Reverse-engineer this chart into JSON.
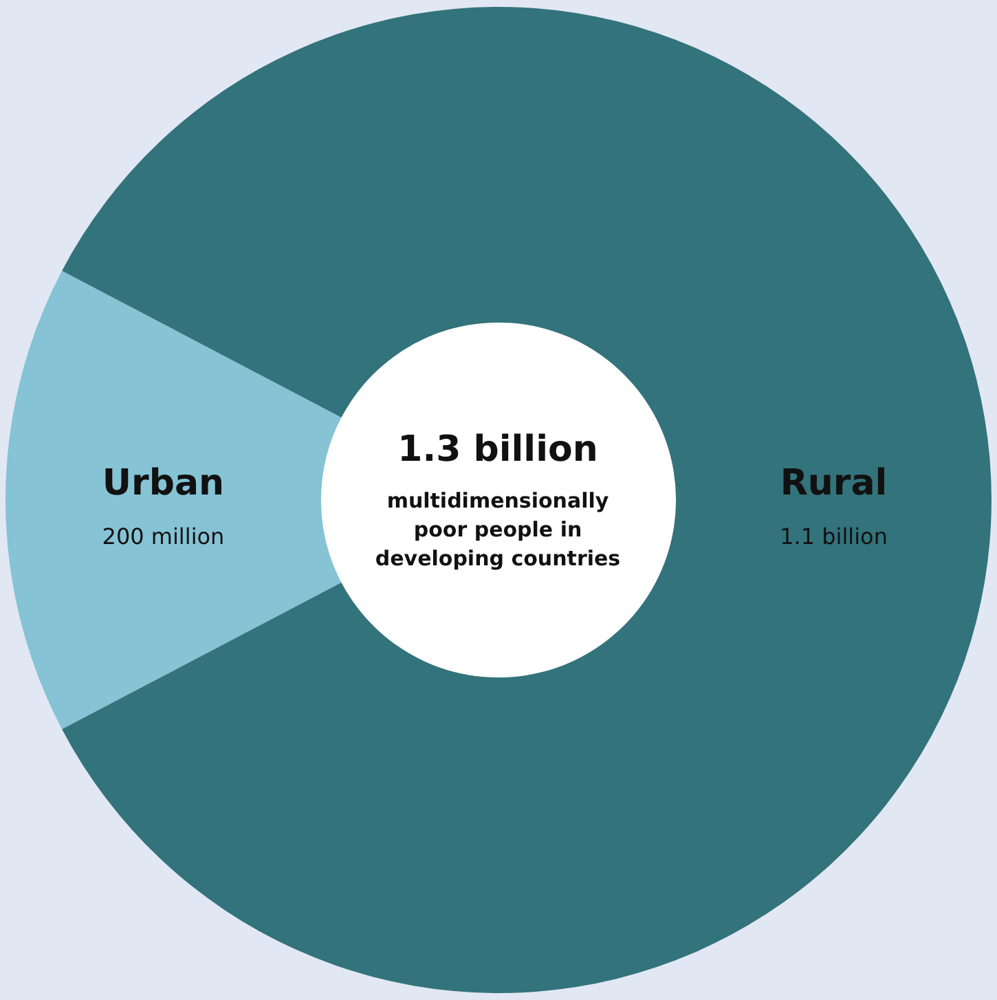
{
  "chart_data": {
    "type": "donut",
    "title": "1.3 billion",
    "subtitle": "multidimensionally poor people in developing countries",
    "categories": [
      "Urban",
      "Rural"
    ],
    "values": [
      200000000,
      1100000000
    ],
    "value_labels": [
      "200 million",
      "1.1 billion"
    ],
    "colors": [
      "#85c3d5",
      "#33737b"
    ],
    "legend": false
  }
}
